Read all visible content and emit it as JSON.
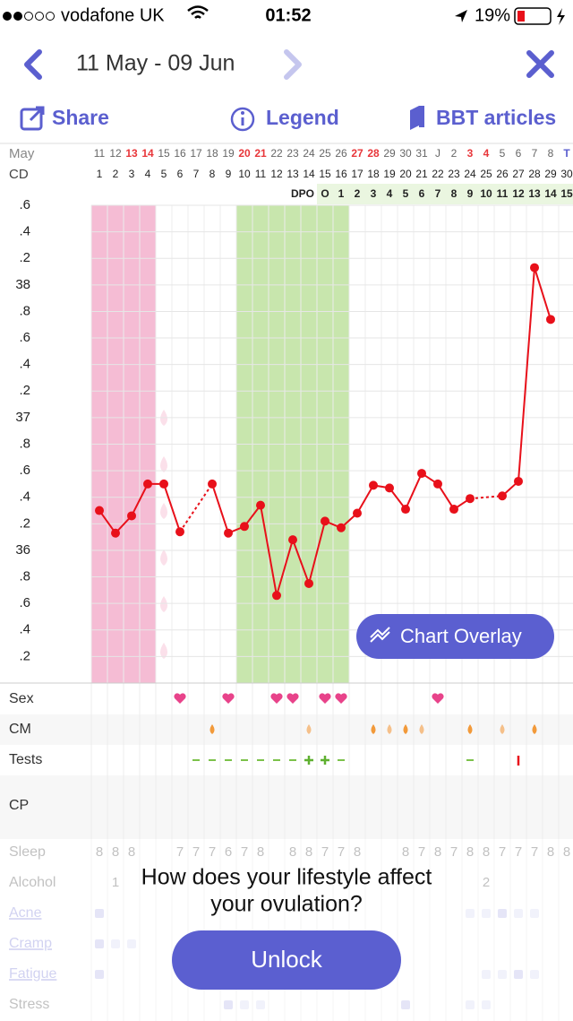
{
  "status_bar": {
    "carrier": "vodafone UK",
    "time": "01:52",
    "battery": "19%"
  },
  "nav": {
    "title": "11 May - 09 Jun"
  },
  "toolbar": {
    "share": "Share",
    "legend": "Legend",
    "articles": "BBT articles"
  },
  "grid": {
    "month_label": "May",
    "cd_label": "CD",
    "dpo_label": "DPO",
    "dates": [
      "11",
      "12",
      "13",
      "14",
      "15",
      "16",
      "17",
      "18",
      "19",
      "20",
      "21",
      "22",
      "23",
      "24",
      "25",
      "26",
      "27",
      "28",
      "29",
      "30",
      "31",
      "J",
      "2",
      "3",
      "4",
      "5",
      "6",
      "7",
      "8",
      "T"
    ],
    "weekend_dates": [
      2,
      3,
      9,
      10,
      16,
      17,
      23,
      24
    ],
    "today_index": 29,
    "cd": [
      1,
      2,
      3,
      4,
      5,
      6,
      7,
      8,
      9,
      10,
      11,
      12,
      13,
      14,
      15,
      16,
      17,
      18,
      19,
      20,
      21,
      22,
      23,
      24,
      25,
      26,
      27,
      28,
      29,
      30
    ],
    "dpo": [
      "O",
      1,
      2,
      3,
      4,
      5,
      6,
      7,
      8,
      9,
      10,
      11,
      12,
      13,
      14,
      15
    ]
  },
  "temperature_chart": {
    "type": "line",
    "color": "#e8101a",
    "ylim": [
      35,
      38.6
    ],
    "yticks": [
      {
        "value": 35.2,
        "label": ".2"
      },
      {
        "value": 35.4,
        "label": ".4"
      },
      {
        "value": 35.6,
        "label": ".6"
      },
      {
        "value": 35.8,
        "label": ".8"
      },
      36,
      {
        "value": 36.2,
        "label": ".2"
      },
      {
        "value": 36.4,
        "label": ".4"
      },
      {
        "value": 36.6,
        "label": ".6"
      },
      {
        "value": 36.8,
        "label": ".8"
      },
      37,
      {
        "value": 37.2,
        "label": ".2"
      },
      {
        "value": 37.4,
        "label": ".4"
      },
      {
        "value": 37.6,
        "label": ".6"
      },
      {
        "value": 37.8,
        "label": ".8"
      },
      38,
      {
        "value": 38.2,
        "label": ".2"
      },
      {
        "value": 38.4,
        "label": ".4"
      },
      {
        "value": 38.6,
        "label": ".6"
      }
    ],
    "values": [
      36.3,
      36.13,
      36.26,
      36.5,
      36.5,
      36.14,
      null,
      36.5,
      36.13,
      36.18,
      36.34,
      35.66,
      36.08,
      35.75,
      36.22,
      36.17,
      36.28,
      36.49,
      36.47,
      36.31,
      36.58,
      36.5,
      36.31,
      36.39,
      null,
      36.41,
      36.52,
      38.13,
      37.74,
      null
    ],
    "period_days": [
      1,
      4
    ],
    "fertile_days": [
      10,
      16
    ],
    "spotting_day": 5
  },
  "chart_overlay_button": "Chart Overlay",
  "rows": {
    "labels": [
      "Sex",
      "CM",
      "Tests",
      "CP"
    ],
    "sex_days": [
      6,
      9,
      12,
      13,
      15,
      16,
      22
    ],
    "cm_days": [
      8,
      14,
      18,
      19,
      20,
      21,
      24,
      26,
      28
    ],
    "tests_negative_days": [
      7,
      8,
      9,
      10,
      11,
      12,
      13,
      16,
      24
    ],
    "tests_positive_days": [
      14,
      15
    ],
    "tests_peak_days": [
      27
    ]
  },
  "lifestyle": {
    "labels": [
      "Sleep",
      "Alcohol",
      "Acne",
      "Cramp",
      "Fatigue",
      "Stress"
    ],
    "sleep": [
      8,
      8,
      8,
      null,
      null,
      7,
      7,
      7,
      6,
      7,
      8,
      null,
      8,
      8,
      7,
      7,
      8,
      null,
      null,
      8,
      7,
      8,
      7,
      8,
      8,
      7,
      7,
      7,
      8,
      8
    ],
    "alcohol": [
      null,
      1,
      null,
      null,
      null,
      null,
      null,
      null,
      null,
      null,
      null,
      null,
      null,
      null,
      null,
      null,
      null,
      null,
      null,
      null,
      null,
      null,
      null,
      null,
      2,
      null,
      null,
      null,
      null,
      null
    ]
  },
  "unlock": {
    "prompt_line1": "How does your lifestyle affect",
    "prompt_line2": "your ovulation?",
    "button": "Unlock"
  }
}
